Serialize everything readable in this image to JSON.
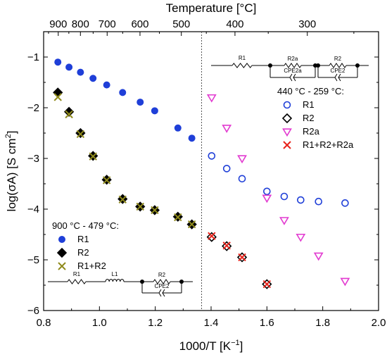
{
  "chart_data": {
    "type": "scatter",
    "xlabel": "1000/T [K",
    "xlabel_sup": "−1",
    "xlabel_close": "]",
    "ylabel": "log(σA) [S cm",
    "ylabel_sup": "2",
    "ylabel_close": "]",
    "top_axis_label": "Temperature [°C]",
    "xlim": [
      0.8,
      2.0
    ],
    "ylim": [
      -6,
      -0.5
    ],
    "x_ticks": [
      0.8,
      1.0,
      1.2,
      1.4,
      1.6,
      1.8,
      2.0
    ],
    "x_tick_labels": [
      "0.8",
      "1.0",
      "1.2",
      "1.4",
      "1.6",
      "1.8",
      "2.0"
    ],
    "y_ticks": [
      -6,
      -5,
      -4,
      -3,
      -2,
      -1
    ],
    "y_tick_labels": [
      "−6",
      "−5",
      "−4",
      "−3",
      "−2",
      "−1"
    ],
    "top_ticks_celsius": [
      900,
      800,
      700,
      600,
      500,
      400,
      300
    ],
    "top_tick_labels": [
      "900",
      "800",
      "700",
      "600",
      "500",
      "400",
      "300"
    ],
    "divider_x": 1.366,
    "legend_high": {
      "title": "900 °C - 479 °C:",
      "entries": [
        "R1",
        "R2",
        "R1+R2"
      ]
    },
    "legend_low": {
      "title": "440 °C - 259 °C:",
      "entries": [
        "R1",
        "R2",
        "R2a",
        "R1+R2+R2a"
      ]
    },
    "circuit_high_labels": [
      "R1",
      "L1",
      "R2",
      "CPE2"
    ],
    "circuit_low_labels": [
      "R1",
      "R2a",
      "CPE2a",
      "R2",
      "CPE2"
    ],
    "series": [
      {
        "name": "R1",
        "marker": "filled-circle",
        "color": "#1f3fd8",
        "x": [
          0.851,
          0.891,
          0.932,
          0.977,
          1.026,
          1.083,
          1.146,
          1.198,
          1.281,
          1.331
        ],
        "y": [
          -1.1,
          -1.2,
          -1.3,
          -1.42,
          -1.55,
          -1.7,
          -1.89,
          -2.06,
          -2.4,
          -2.6
        ]
      },
      {
        "name": "R2",
        "marker": "filled-diamond",
        "color": "#000000",
        "x": [
          0.851,
          0.891,
          0.932,
          0.977,
          1.026,
          1.083,
          1.146,
          1.198,
          1.281,
          1.331
        ],
        "y": [
          -1.7,
          -2.08,
          -2.5,
          -2.95,
          -3.42,
          -3.8,
          -3.95,
          -4.02,
          -4.15,
          -4.3
        ]
      },
      {
        "name": "R1+R2",
        "marker": "x",
        "color": "#8f8a1c",
        "x": [
          0.851,
          0.891,
          0.932,
          0.977,
          1.026,
          1.083,
          1.146,
          1.198,
          1.281,
          1.331
        ],
        "y": [
          -1.79,
          -2.13,
          -2.52,
          -2.96,
          -3.43,
          -3.81,
          -3.95,
          -4.02,
          -4.16,
          -4.3
        ]
      },
      {
        "name": "R1",
        "marker": "open-circle",
        "color": "#1f3fd8",
        "x": [
          1.402,
          1.456,
          1.511,
          1.6,
          1.662,
          1.721,
          1.785,
          1.88
        ],
        "y": [
          -2.95,
          -3.2,
          -3.4,
          -3.65,
          -3.75,
          -3.82,
          -3.85,
          -3.88
        ]
      },
      {
        "name": "R2",
        "marker": "open-diamond",
        "color": "#000000",
        "x": [
          1.402,
          1.456,
          1.511,
          1.6
        ],
        "y": [
          -4.55,
          -4.73,
          -4.95,
          -5.48
        ]
      },
      {
        "name": "R2a",
        "marker": "open-triangle-down",
        "color": "#e23ad0",
        "x": [
          1.402,
          1.456,
          1.511,
          1.6,
          1.662,
          1.721,
          1.785,
          1.88
        ],
        "y": [
          -1.8,
          -2.4,
          -3.0,
          -3.78,
          -4.22,
          -4.55,
          -4.92,
          -5.42
        ]
      },
      {
        "name": "R1+R2+R2a",
        "marker": "x",
        "color": "#e8241c",
        "x": [
          1.402,
          1.456,
          1.511,
          1.6
        ],
        "y": [
          -4.53,
          -4.72,
          -4.95,
          -5.48
        ]
      }
    ]
  }
}
